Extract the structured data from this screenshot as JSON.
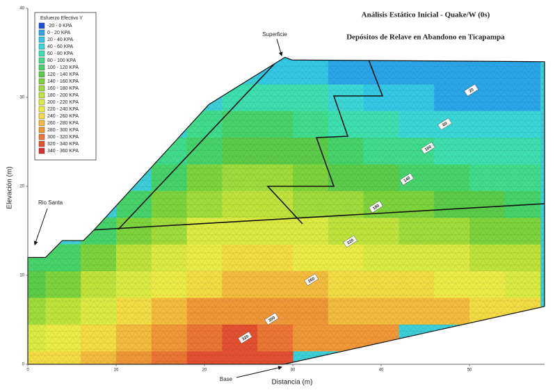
{
  "chart_data": {
    "type": "contour",
    "title": "Análisis Estático Inicial - Quake/W (0s)",
    "subtitle": "Depósitos de Relave en Abandono en Ticapampa",
    "x_label": "Distancia (m)",
    "y_label": "Elevación (m)",
    "xlim": [
      0,
      58.5
    ],
    "ylim": [
      0,
      40
    ],
    "xticks": [
      0,
      10,
      20,
      30,
      40,
      50
    ],
    "yticks": [
      0,
      10,
      20,
      30,
      40
    ],
    "legend": {
      "title": "Esfuerzo Efectivo Y",
      "items": [
        {
          "label": "-20 - 0 KPA",
          "color": "#1f4fd8"
        },
        {
          "label": "0 - 20 KPA",
          "color": "#2aa6e8"
        },
        {
          "label": "20 - 40 KPA",
          "color": "#33c9e6"
        },
        {
          "label": "40 - 60 KPA",
          "color": "#3cd8d8"
        },
        {
          "label": "60 - 80 KPA",
          "color": "#3ee0b0"
        },
        {
          "label": "80 - 100 KPA",
          "color": "#40dc8c"
        },
        {
          "label": "100 - 120 KPA",
          "color": "#46d46a"
        },
        {
          "label": "120 - 140 KPA",
          "color": "#5ccc4a"
        },
        {
          "label": "140 - 160 KPA",
          "color": "#7ed43c"
        },
        {
          "label": "160 - 180 KPA",
          "color": "#a0dc3c"
        },
        {
          "label": "180 - 200 KPA",
          "color": "#c0e43c"
        },
        {
          "label": "200 - 220 KPA",
          "color": "#dcec44"
        },
        {
          "label": "220 - 240 KPA",
          "color": "#ecec48"
        },
        {
          "label": "240 - 260 KPA",
          "color": "#f4dc44"
        },
        {
          "label": "260 - 280 KPA",
          "color": "#f4bc3c"
        },
        {
          "label": "280 - 300 KPA",
          "color": "#f09838"
        },
        {
          "label": "300 - 320 KPA",
          "color": "#ec7634"
        },
        {
          "label": "320 - 340 KPA",
          "color": "#e45030"
        },
        {
          "label": "340 - 360 KPA",
          "color": "#d8302c"
        }
      ]
    },
    "levels": [
      -20,
      0,
      20,
      40,
      60,
      80,
      100,
      120,
      140,
      160,
      180,
      200,
      220,
      240,
      260,
      280,
      300,
      320,
      340,
      360
    ],
    "boundary": {
      "x": [
        0,
        0,
        2,
        3.9,
        6.3,
        7.5,
        20.5,
        29.1,
        29.9,
        58.5,
        58.5,
        29
      ],
      "y": [
        0,
        12,
        12,
        13.9,
        13.9,
        15.1,
        29.2,
        34.5,
        34.2,
        34,
        6.5,
        0
      ]
    },
    "grid": {
      "x": [
        0,
        4,
        8,
        12,
        16,
        20,
        24,
        28,
        32,
        36,
        40,
        44,
        48,
        52,
        56
      ],
      "y": [
        0,
        3,
        6,
        9,
        12,
        15,
        18,
        21,
        24,
        27,
        30,
        33
      ],
      "z": [
        [
          240,
          250,
          260,
          280,
          300,
          320,
          330,
          320,
          null,
          null,
          null,
          null,
          null,
          null,
          null
        ],
        [
          210,
          225,
          240,
          260,
          280,
          310,
          330,
          310,
          290,
          280,
          290,
          null,
          null,
          null,
          null
        ],
        [
          170,
          190,
          215,
          240,
          260,
          280,
          295,
          290,
          280,
          275,
          270,
          275,
          260,
          255,
          250
        ],
        [
          130,
          150,
          180,
          210,
          235,
          255,
          265,
          265,
          260,
          250,
          245,
          245,
          230,
          220,
          215
        ],
        [
          100,
          115,
          145,
          180,
          205,
          225,
          240,
          240,
          230,
          225,
          215,
          210,
          200,
          190,
          180
        ],
        [
          null,
          null,
          110,
          145,
          175,
          200,
          210,
          210,
          200,
          195,
          185,
          175,
          165,
          155,
          145
        ],
        [
          null,
          null,
          null,
          110,
          140,
          170,
          185,
          185,
          175,
          165,
          155,
          145,
          135,
          125,
          115
        ],
        [
          null,
          null,
          null,
          null,
          110,
          140,
          160,
          160,
          150,
          135,
          125,
          115,
          105,
          95,
          90
        ],
        [
          null,
          null,
          null,
          null,
          80,
          110,
          130,
          130,
          120,
          105,
          95,
          85,
          75,
          70,
          65
        ],
        [
          null,
          null,
          null,
          null,
          null,
          80,
          100,
          100,
          90,
          75,
          65,
          55,
          45,
          40,
          40
        ],
        [
          null,
          null,
          null,
          null,
          null,
          null,
          60,
          70,
          60,
          45,
          35,
          25,
          18,
          15,
          15
        ],
        [
          null,
          null,
          null,
          null,
          null,
          null,
          null,
          30,
          25,
          15,
          10,
          5,
          2,
          0,
          0
        ]
      ]
    },
    "contour_labels": [
      {
        "value": 20,
        "x": 50.2,
        "y": 30.8
      },
      {
        "value": 60,
        "x": 47.2,
        "y": 27.0
      },
      {
        "value": 100,
        "x": 45.3,
        "y": 24.3
      },
      {
        "value": 140,
        "x": 42.9,
        "y": 20.8
      },
      {
        "value": 180,
        "x": 39.4,
        "y": 17.7
      },
      {
        "value": 220,
        "x": 36.5,
        "y": 13.8
      },
      {
        "value": 260,
        "x": 32.1,
        "y": 9.5
      },
      {
        "value": 300,
        "x": 27.6,
        "y": 5.1
      },
      {
        "value": 320,
        "x": 24.6,
        "y": 3.0
      }
    ],
    "annotations": [
      "Superficie",
      "Rio Santa",
      "Base"
    ]
  }
}
